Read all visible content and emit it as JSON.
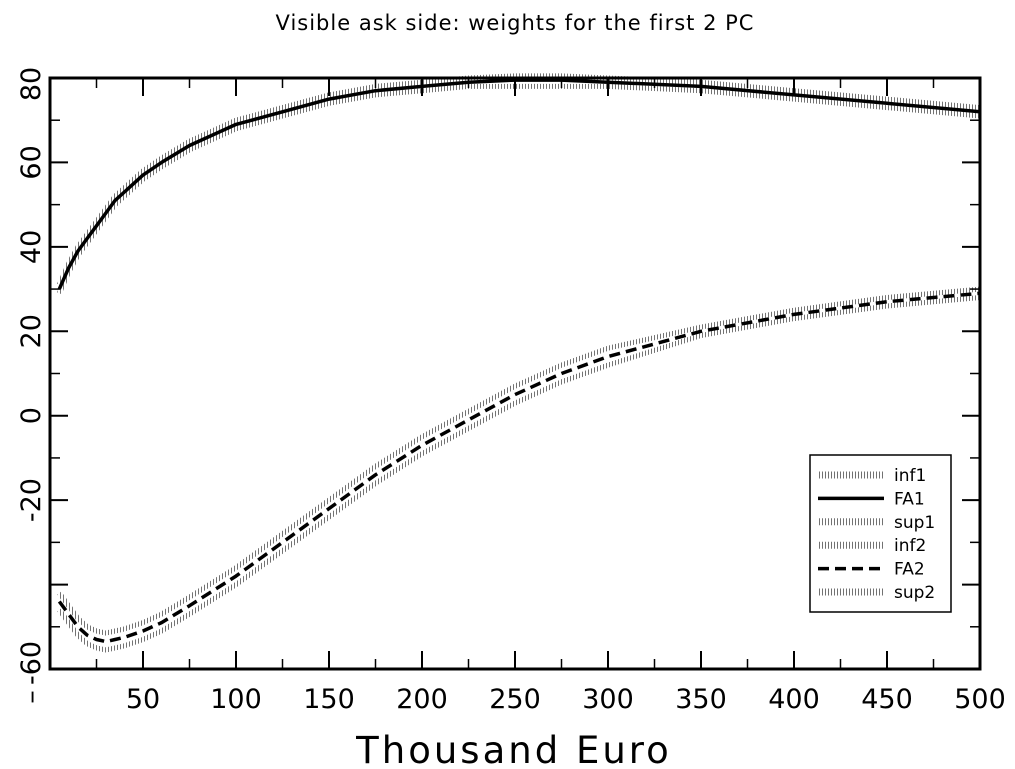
{
  "chart_data": {
    "type": "line",
    "title": "Visible ask side: weights for the first 2 PC",
    "xlabel": "Thousand Euro",
    "ylabel": "",
    "xlim": [
      0,
      500
    ],
    "ylim": [
      -60,
      80
    ],
    "x_ticks": [
      50,
      100,
      150,
      200,
      250,
      300,
      350,
      400,
      450,
      500
    ],
    "x_tick_labels": [
      "50",
      "100",
      "150",
      "200",
      "250",
      "300",
      "350",
      "400",
      "450",
      "500"
    ],
    "y_ticks": [
      -60,
      -40,
      -20,
      0,
      20,
      40,
      60,
      80
    ],
    "y_tick_labels": [
      "-60",
      "",
      "-20",
      "0",
      "20",
      "40",
      "60",
      "80"
    ],
    "grid": false,
    "legend_position": "bottom-right",
    "x": [
      5,
      10,
      15,
      20,
      25,
      30,
      35,
      40,
      50,
      60,
      75,
      100,
      125,
      150,
      175,
      200,
      225,
      250,
      275,
      300,
      350,
      400,
      450,
      500
    ],
    "series": [
      {
        "name": "inf1",
        "style": "hatched",
        "values": [
          29,
          34,
          38,
          41,
          44,
          47,
          50,
          52,
          56,
          59,
          63,
          68,
          71,
          74,
          76,
          77,
          78,
          78,
          78,
          78,
          77,
          75,
          73,
          71
        ]
      },
      {
        "name": "FA1",
        "style": "solid",
        "values": [
          30,
          35,
          39,
          42,
          45,
          48,
          51,
          53,
          57,
          60,
          64,
          69,
          72,
          75,
          77,
          78,
          79,
          79.5,
          79.5,
          79,
          78,
          76,
          74,
          72
        ]
      },
      {
        "name": "sup1",
        "style": "hatched",
        "values": [
          31,
          36,
          40,
          43,
          46,
          49,
          52,
          54,
          58,
          61,
          65,
          70,
          73,
          76,
          78,
          79,
          80,
          80.5,
          80.5,
          80,
          79,
          77,
          75,
          73
        ]
      },
      {
        "name": "inf2",
        "style": "hatched",
        "values": [
          -46,
          -49,
          -52,
          -54,
          -55,
          -55.5,
          -55,
          -54.5,
          -53,
          -51,
          -47,
          -40,
          -32,
          -24,
          -16,
          -9,
          -3,
          3,
          8,
          12,
          19,
          23,
          26,
          28
        ]
      },
      {
        "name": "FA2",
        "style": "dashed",
        "values": [
          -44,
          -47,
          -50,
          -52,
          -53,
          -53.5,
          -53,
          -52.5,
          -51,
          -49,
          -45,
          -38,
          -30,
          -22,
          -14,
          -7,
          -1,
          5,
          10,
          14,
          20,
          24,
          27,
          29
        ]
      },
      {
        "name": "sup2",
        "style": "hatched",
        "values": [
          -42,
          -45,
          -48,
          -50,
          -51,
          -51.5,
          -51,
          -50.5,
          -49,
          -47,
          -43,
          -36,
          -28,
          -20,
          -12,
          -5,
          1,
          7,
          12,
          16,
          21,
          25,
          28,
          30
        ]
      }
    ]
  }
}
